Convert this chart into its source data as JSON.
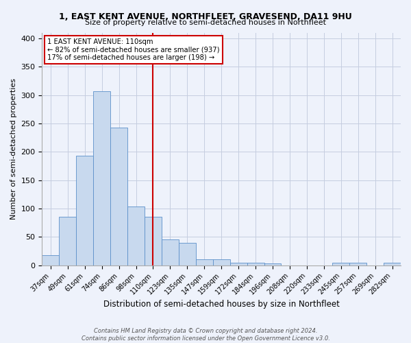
{
  "title": "1, EAST KENT AVENUE, NORTHFLEET, GRAVESEND, DA11 9HU",
  "subtitle": "Size of property relative to semi-detached houses in Northfleet",
  "xlabel": "Distribution of semi-detached houses by size in Northfleet",
  "ylabel": "Number of semi-detached properties",
  "categories": [
    "37sqm",
    "49sqm",
    "61sqm",
    "74sqm",
    "86sqm",
    "98sqm",
    "110sqm",
    "123sqm",
    "135sqm",
    "147sqm",
    "159sqm",
    "172sqm",
    "184sqm",
    "196sqm",
    "208sqm",
    "220sqm",
    "233sqm",
    "245sqm",
    "257sqm",
    "269sqm",
    "282sqm"
  ],
  "values": [
    18,
    85,
    193,
    307,
    243,
    104,
    85,
    45,
    40,
    11,
    10,
    4,
    5,
    3,
    0,
    0,
    0,
    5,
    4,
    0,
    5
  ],
  "bar_color": "#c8d9ee",
  "bar_edge_color": "#5b8fc9",
  "vline_x_index": 6,
  "vline_color": "#cc0000",
  "annotation_line1": "1 EAST KENT AVENUE: 110sqm",
  "annotation_line2": "← 82% of semi-detached houses are smaller (937)",
  "annotation_line3": "17% of semi-detached houses are larger (198) →",
  "annotation_box_edge_color": "#cc0000",
  "ylim": [
    0,
    410
  ],
  "yticks": [
    0,
    50,
    100,
    150,
    200,
    250,
    300,
    350,
    400
  ],
  "footer_line1": "Contains HM Land Registry data © Crown copyright and database right 2024.",
  "footer_line2": "Contains public sector information licensed under the Open Government Licence v3.0.",
  "bg_color": "#eef2fb",
  "grid_color": "#c5cde0"
}
